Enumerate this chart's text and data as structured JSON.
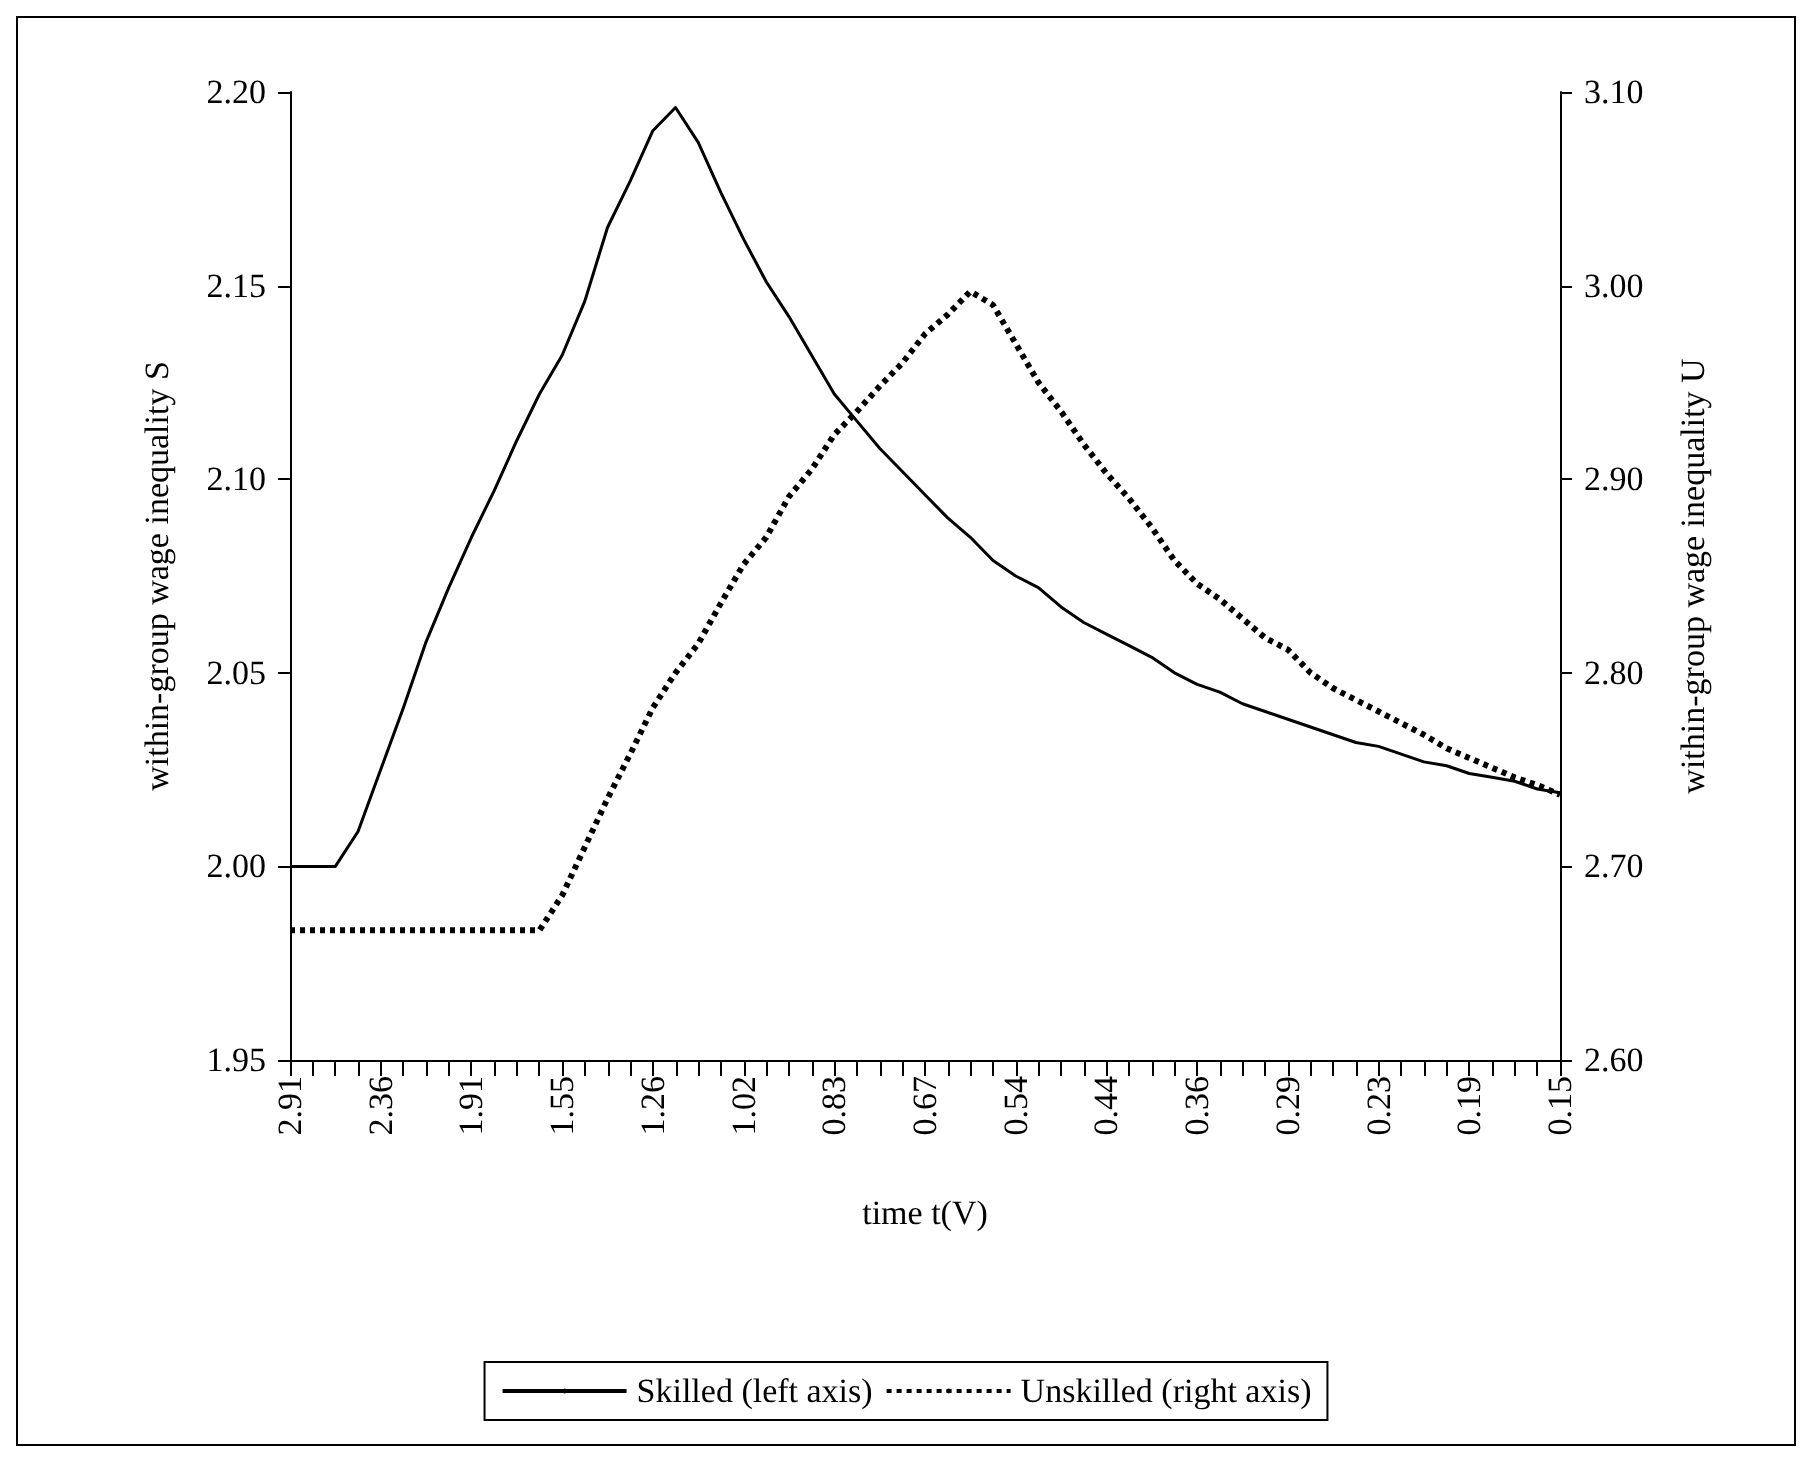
{
  "chart_data": {
    "type": "line",
    "xlabel": "time t(V)",
    "ylabel": "within-group wage inequality S",
    "y2label": "within-group wage inequality U",
    "categories": [
      "2.91",
      null,
      null,
      null,
      "2.36",
      null,
      null,
      null,
      "1.91",
      null,
      null,
      null,
      "1.55",
      null,
      null,
      null,
      "1.26",
      null,
      null,
      null,
      "1.02",
      null,
      null,
      null,
      "0.83",
      null,
      null,
      null,
      "0.67",
      null,
      null,
      null,
      "0.54",
      null,
      null,
      null,
      "0.44",
      null,
      null,
      null,
      "0.36",
      null,
      null,
      null,
      "0.29",
      null,
      null,
      null,
      "0.23",
      null,
      null,
      null,
      "0.19",
      null,
      null,
      null,
      "0.15"
    ],
    "series": [
      {
        "name": "Skilled (left axis)",
        "color": "#000000",
        "line_style": "solid",
        "values": [
          2.0,
          2.0,
          2.0,
          2.009,
          2.025,
          2.041,
          2.058,
          2.072,
          2.085,
          2.097,
          2.11,
          2.122,
          2.132,
          2.146,
          2.165,
          2.177,
          2.19,
          2.196,
          2.187,
          2.174,
          2.162,
          2.151,
          2.142,
          2.132,
          2.122,
          2.115,
          2.108,
          2.102,
          2.096,
          2.09,
          2.085,
          2.079,
          2.075,
          2.072,
          2.067,
          2.063,
          2.06,
          2.057,
          2.054,
          2.05,
          2.047,
          2.045,
          2.042,
          2.04,
          2.038,
          2.036,
          2.034,
          2.032,
          2.031,
          2.029,
          2.027,
          2.026,
          2.024,
          2.023,
          2.022,
          2.02,
          2.019
        ]
      },
      {
        "name": "Unskilled (right axis)",
        "color": "#000000",
        "line_style": "dotted",
        "axis": "y2",
        "values": [
          2.667,
          2.667,
          2.667,
          2.667,
          2.667,
          2.667,
          2.667,
          2.667,
          2.667,
          2.667,
          2.667,
          2.667,
          2.685,
          2.71,
          2.735,
          2.758,
          2.782,
          2.8,
          2.815,
          2.836,
          2.856,
          2.87,
          2.891,
          2.905,
          2.923,
          2.935,
          2.948,
          2.96,
          2.975,
          2.985,
          2.997,
          2.99,
          2.97,
          2.95,
          2.935,
          2.918,
          2.903,
          2.89,
          2.875,
          2.858,
          2.846,
          2.838,
          2.828,
          2.818,
          2.812,
          2.8,
          2.792,
          2.786,
          2.78,
          2.774,
          2.768,
          2.761,
          2.756,
          2.751,
          2.746,
          2.742,
          2.737
        ]
      }
    ],
    "ylim": [
      1.95,
      2.2
    ],
    "yticks": [
      {
        "value": 1.95,
        "label": "1.95"
      },
      {
        "value": 2,
        "label": "2.00"
      },
      {
        "value": 2.05,
        "label": "2.05"
      },
      {
        "value": 2.1,
        "label": "2.10"
      },
      {
        "value": 2.15,
        "label": "2.15"
      },
      {
        "value": 2.2,
        "label": "2.20"
      }
    ],
    "y2lim": [
      2.6,
      3.1
    ],
    "y2ticks": [
      {
        "value": 2.6,
        "label": "2.60"
      },
      {
        "value": 2.7,
        "label": "2.70"
      },
      {
        "value": 2.8,
        "label": "2.80"
      },
      {
        "value": 2.9,
        "label": "2.90"
      },
      {
        "value": 3,
        "label": "3.00"
      },
      {
        "value": 3.1,
        "label": "3.10"
      }
    ],
    "legend": "bottom",
    "grid": false,
    "marker": "none"
  }
}
